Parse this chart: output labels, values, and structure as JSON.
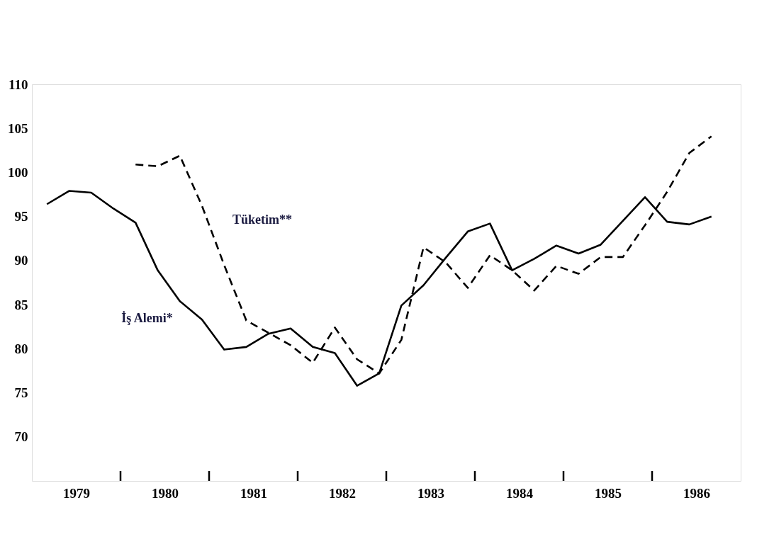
{
  "chart_data": {
    "type": "line",
    "x": [
      1979.17,
      1979.42,
      1979.67,
      1979.92,
      1980.17,
      1980.42,
      1980.67,
      1980.92,
      1981.17,
      1981.42,
      1981.67,
      1981.92,
      1982.17,
      1982.42,
      1982.67,
      1982.92,
      1983.17,
      1983.42,
      1983.67,
      1983.92,
      1984.17,
      1984.42,
      1984.67,
      1984.92,
      1985.17,
      1985.42,
      1985.67,
      1985.92,
      1986.17,
      1986.42,
      1986.67
    ],
    "series": [
      {
        "name": "İş Alemi*",
        "color": "#000000",
        "line_style": "solid",
        "values": [
          96.4,
          97.9,
          97.7,
          95.9,
          94.3,
          88.9,
          85.4,
          83.3,
          79.9,
          80.2,
          81.7,
          82.3,
          80.2,
          79.5,
          75.8,
          77.2,
          84.9,
          87.2,
          90.3,
          93.3,
          94.2,
          88.9,
          90.2,
          91.7,
          90.8,
          91.8,
          94.5,
          97.2,
          94.4,
          94.1,
          95.0
        ]
      },
      {
        "name": "Tüketim**",
        "color": "#000000",
        "line_style": "dashed",
        "values": [
          null,
          null,
          null,
          null,
          100.9,
          100.7,
          101.9,
          96.2,
          89.5,
          83.2,
          81.8,
          80.4,
          78.4,
          82.4,
          78.8,
          77.2,
          81.0,
          91.5,
          89.8,
          86.9,
          90.6,
          88.9,
          86.6,
          89.4,
          88.5,
          90.4,
          90.4,
          94.0,
          97.8,
          102.2,
          104.1
        ]
      }
    ],
    "xlim": [
      1979,
      1987
    ],
    "xticks": [
      {
        "value": 1979.5,
        "label": "1979"
      },
      {
        "value": 1980,
        "label": null
      },
      {
        "value": 1980.5,
        "label": "1980"
      },
      {
        "value": 1981,
        "label": null
      },
      {
        "value": 1981.5,
        "label": "1981"
      },
      {
        "value": 1982,
        "label": null
      },
      {
        "value": 1982.5,
        "label": "1982"
      },
      {
        "value": 1983,
        "label": null
      },
      {
        "value": 1983.5,
        "label": "1983"
      },
      {
        "value": 1984,
        "label": null
      },
      {
        "value": 1984.5,
        "label": "1984"
      },
      {
        "value": 1985,
        "label": null
      },
      {
        "value": 1985.5,
        "label": "1985"
      },
      {
        "value": 1986,
        "label": null
      },
      {
        "value": 1986.5,
        "label": "1986"
      }
    ],
    "ylim": [
      65,
      110
    ],
    "yticks": [
      70,
      75,
      80,
      85,
      90,
      95,
      100,
      105,
      110
    ],
    "grid": false,
    "marker": "none"
  }
}
